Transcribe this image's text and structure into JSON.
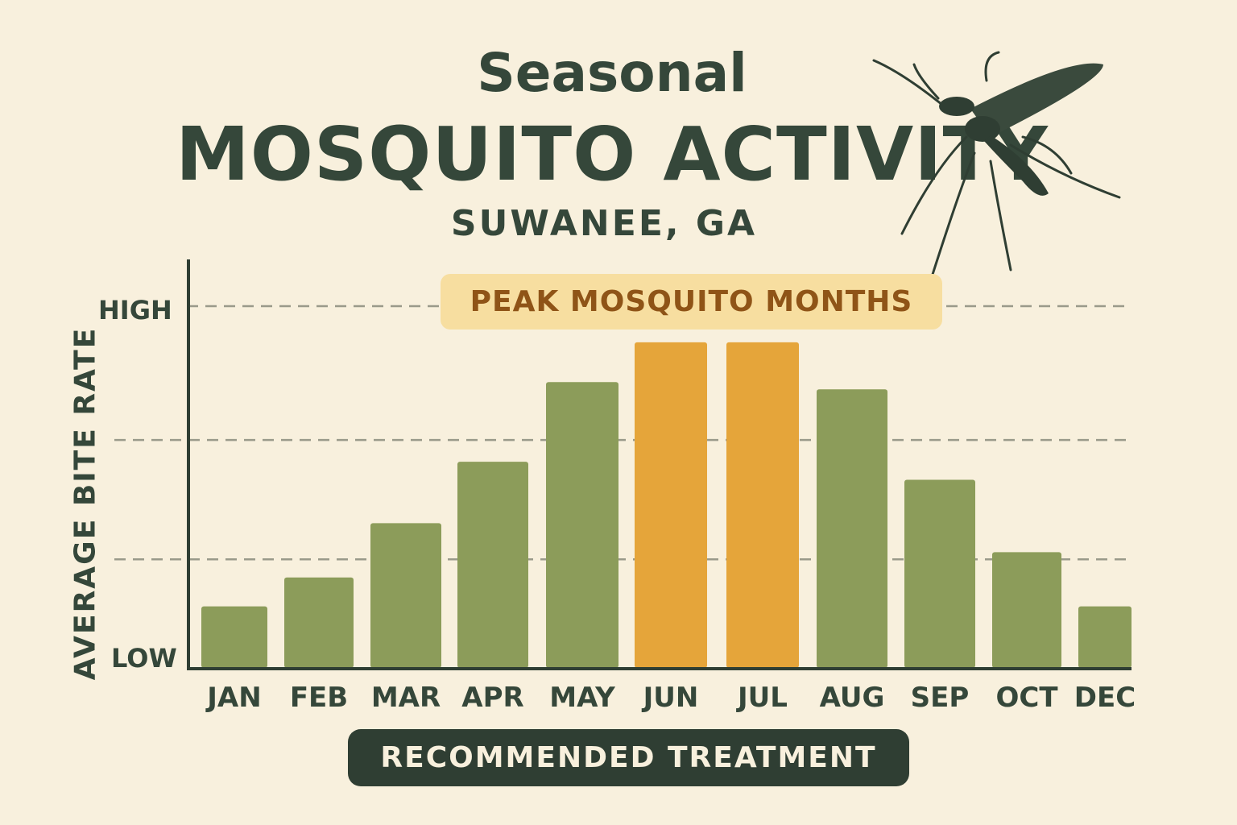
{
  "title": {
    "line1": "Seasonal",
    "line2": "MOSQUITO ACTIVITY",
    "location": "SUWANEE, GA"
  },
  "peak_label": "PEAK MOSQUITO MONTHS",
  "cta_label": "RECOMMENDED TREATMENT",
  "colors": {
    "background": "#f8f0dd",
    "text": "#35473a",
    "bar_normal": "#8c9c5a",
    "bar_peak": "#e5a53a",
    "peak_badge": "#f7dea0",
    "cta": "#2f3e33"
  },
  "chart_data": {
    "type": "bar",
    "title": "MOSQUITO ACTIVITY",
    "xlabel": "",
    "ylabel": "AVERAGE BITE RATE",
    "y_tick_labels": [
      "LOW",
      "HIGH"
    ],
    "categories": [
      "JAN",
      "FEB",
      "MAR",
      "APR",
      "MAY",
      "JUN",
      "JUL",
      "AUG",
      "SEP",
      "OCT",
      "DEC"
    ],
    "values": [
      17,
      25,
      40,
      57,
      79,
      90,
      90,
      77,
      52,
      32,
      17
    ],
    "highlighted": [
      "JUN",
      "JUL"
    ],
    "ylim": [
      0,
      100
    ],
    "grid": "dashed horizontal",
    "legend": "none"
  }
}
